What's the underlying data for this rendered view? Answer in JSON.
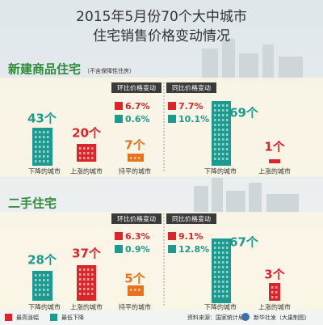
{
  "header": {
    "title_line1": "2015年5月份70个大中城市",
    "title_line2": "住宅销售价格变动情况"
  },
  "sections": [
    {
      "title": "新建商品住宅",
      "note": "（不含保障性住房）",
      "mom_header": "环比价格变动",
      "yoy_header": "同比价格变动",
      "mom": {
        "down_count": "43个",
        "down_label": "下降的城市",
        "up_count": "20个",
        "up_label": "上涨的城市",
        "flat_count": "7个",
        "flat_label": "持平的城市",
        "max_rise": "6.7%",
        "min_fall": "0.6%"
      },
      "yoy": {
        "max_rise": "7.7%",
        "min_fall": "10.1%",
        "down_count": "69个",
        "down_label": "下降的城市",
        "up_count": "1个",
        "up_label": "上涨的城市"
      }
    },
    {
      "title": "二手住宅",
      "mom_header": "环比价格变动",
      "yoy_header": "同比价格变动",
      "mom": {
        "down_count": "28个",
        "down_label": "下降的城市",
        "up_count": "37个",
        "up_label": "上涨的城市",
        "flat_count": "5个",
        "flat_label": "持平的城市",
        "max_rise": "6.3%",
        "min_fall": "0.9%"
      },
      "yoy": {
        "max_rise": "9.1%",
        "min_fall": "12.8%",
        "down_count": "67个",
        "down_label": "下降的城市",
        "up_count": "3个",
        "up_label": "上涨的城市"
      }
    }
  ],
  "footer": {
    "legend_rise": "最高涨幅",
    "legend_fall": "最低下降",
    "source": "资料来源：国家统计局",
    "credit": "新华社发（大巢制图）"
  }
}
